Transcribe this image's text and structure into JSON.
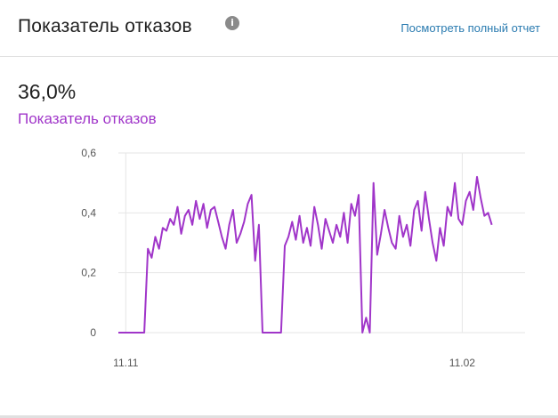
{
  "header": {
    "title": "Показатель отказов",
    "info_icon": "info-icon",
    "report_link": "Посмотреть полный отчет"
  },
  "metric": {
    "value": "36,0%",
    "label": "Показатель отказов"
  },
  "colors": {
    "series": "#a035c9",
    "link": "#2a7bb0"
  },
  "chart_data": {
    "type": "line",
    "title": "",
    "xlabel": "",
    "ylabel": "",
    "ylim": [
      0,
      0.6
    ],
    "yticks": [
      0,
      0.2,
      0.4,
      0.6
    ],
    "ytick_labels": [
      "0",
      "0,2",
      "0,4",
      "0,6"
    ],
    "xtick_labels": [
      {
        "label": "11.11",
        "index": 2
      },
      {
        "label": "11.02",
        "index": 93
      }
    ],
    "grid": true,
    "series": [
      {
        "values": [
          0,
          0,
          0,
          0,
          0,
          0,
          0,
          0,
          0.28,
          0.25,
          0.32,
          0.28,
          0.35,
          0.34,
          0.38,
          0.36,
          0.42,
          0.33,
          0.39,
          0.41,
          0.36,
          0.44,
          0.38,
          0.43,
          0.35,
          0.41,
          0.42,
          0.37,
          0.32,
          0.28,
          0.36,
          0.41,
          0.3,
          0.33,
          0.37,
          0.43,
          0.46,
          0.24,
          0.36,
          0,
          0,
          0,
          0,
          0,
          0,
          0.29,
          0.32,
          0.37,
          0.31,
          0.39,
          0.3,
          0.35,
          0.29,
          0.42,
          0.36,
          0.28,
          0.38,
          0.34,
          0.3,
          0.36,
          0.32,
          0.4,
          0.3,
          0.43,
          0.39,
          0.46,
          0,
          0.05,
          0,
          0.5,
          0.26,
          0.33,
          0.41,
          0.35,
          0.3,
          0.28,
          0.39,
          0.32,
          0.36,
          0.29,
          0.41,
          0.44,
          0.34,
          0.47,
          0.38,
          0.3,
          0.24,
          0.35,
          0.29,
          0.42,
          0.39,
          0.5,
          0.38,
          0.36,
          0.44,
          0.47,
          0.41,
          0.52,
          0.45,
          0.39,
          0.4,
          0.36
        ]
      }
    ]
  }
}
